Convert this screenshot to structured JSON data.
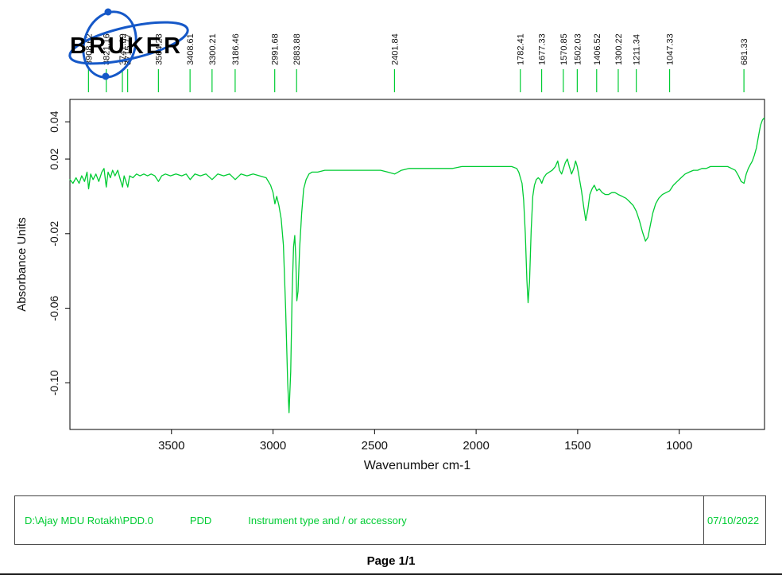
{
  "logo": {
    "text": "BRUKER",
    "text_color": "#000000",
    "swirl_color": "#1558c8"
  },
  "chart_data": {
    "type": "line",
    "title": "",
    "xlabel": "Wavenumber cm-1",
    "ylabel": "Absorbance Units",
    "x_ticks": [
      3500,
      3000,
      2500,
      2000,
      1500,
      1000
    ],
    "y_ticks": [
      "0.04",
      "0.02",
      "-0.02",
      "-0.06",
      "-0.10"
    ],
    "xlim": [
      4000,
      580
    ],
    "ylim": [
      -0.125,
      0.052
    ],
    "grid": false,
    "legend": "none",
    "line_color": "#00cc33",
    "peak_labels": [
      "3908.62",
      "3821.16",
      "3741.69",
      "3715.77",
      "3564.23",
      "3408.61",
      "3300.21",
      "3186.46",
      "2991.68",
      "2883.88",
      "2401.84",
      "1782.41",
      "1677.33",
      "1570.85",
      "1502.03",
      "1406.52",
      "1300.22",
      "1211.34",
      "1047.33",
      "681.33"
    ],
    "series": [
      {
        "name": "FTIR absorbance spectrum",
        "points": [
          [
            4000,
            0.009
          ],
          [
            3985,
            0.007
          ],
          [
            3970,
            0.01
          ],
          [
            3955,
            0.007
          ],
          [
            3942,
            0.011
          ],
          [
            3928,
            0.008
          ],
          [
            3916,
            0.013
          ],
          [
            3908,
            0.004
          ],
          [
            3898,
            0.012
          ],
          [
            3886,
            0.009
          ],
          [
            3872,
            0.012
          ],
          [
            3858,
            0.008
          ],
          [
            3843,
            0.013
          ],
          [
            3832,
            0.015
          ],
          [
            3821,
            0.005
          ],
          [
            3812,
            0.013
          ],
          [
            3801,
            0.01
          ],
          [
            3790,
            0.014
          ],
          [
            3778,
            0.011
          ],
          [
            3765,
            0.014
          ],
          [
            3752,
            0.009
          ],
          [
            3741,
            0.005
          ],
          [
            3733,
            0.011
          ],
          [
            3724,
            0.008
          ],
          [
            3715,
            0.005
          ],
          [
            3706,
            0.011
          ],
          [
            3690,
            0.01
          ],
          [
            3672,
            0.012
          ],
          [
            3655,
            0.011
          ],
          [
            3636,
            0.012
          ],
          [
            3618,
            0.011
          ],
          [
            3600,
            0.012
          ],
          [
            3582,
            0.011
          ],
          [
            3564,
            0.008
          ],
          [
            3548,
            0.011
          ],
          [
            3530,
            0.012
          ],
          [
            3505,
            0.011
          ],
          [
            3478,
            0.012
          ],
          [
            3450,
            0.011
          ],
          [
            3428,
            0.012
          ],
          [
            3408,
            0.009
          ],
          [
            3385,
            0.012
          ],
          [
            3358,
            0.011
          ],
          [
            3330,
            0.012
          ],
          [
            3300,
            0.009
          ],
          [
            3272,
            0.012
          ],
          [
            3243,
            0.011
          ],
          [
            3214,
            0.012
          ],
          [
            3186,
            0.009
          ],
          [
            3158,
            0.012
          ],
          [
            3128,
            0.011
          ],
          [
            3098,
            0.012
          ],
          [
            3066,
            0.011
          ],
          [
            3034,
            0.01
          ],
          [
            3012,
            0.006
          ],
          [
            3000,
            0.002
          ],
          [
            2991,
            -0.004
          ],
          [
            2982,
            0.0
          ],
          [
            2971,
            -0.005
          ],
          [
            2960,
            -0.012
          ],
          [
            2949,
            -0.026
          ],
          [
            2938,
            -0.06
          ],
          [
            2928,
            -0.1
          ],
          [
            2921,
            -0.116
          ],
          [
            2913,
            -0.094
          ],
          [
            2906,
            -0.052
          ],
          [
            2899,
            -0.027
          ],
          [
            2893,
            -0.021
          ],
          [
            2888,
            -0.033
          ],
          [
            2883,
            -0.056
          ],
          [
            2877,
            -0.051
          ],
          [
            2869,
            -0.028
          ],
          [
            2859,
            -0.009
          ],
          [
            2849,
            0.004
          ],
          [
            2837,
            0.009
          ],
          [
            2823,
            0.012
          ],
          [
            2808,
            0.013
          ],
          [
            2780,
            0.013
          ],
          [
            2745,
            0.014
          ],
          [
            2710,
            0.014
          ],
          [
            2670,
            0.014
          ],
          [
            2630,
            0.014
          ],
          [
            2590,
            0.014
          ],
          [
            2550,
            0.014
          ],
          [
            2510,
            0.014
          ],
          [
            2470,
            0.014
          ],
          [
            2435,
            0.013
          ],
          [
            2401,
            0.012
          ],
          [
            2368,
            0.014
          ],
          [
            2330,
            0.015
          ],
          [
            2290,
            0.015
          ],
          [
            2248,
            0.015
          ],
          [
            2205,
            0.015
          ],
          [
            2160,
            0.015
          ],
          [
            2115,
            0.015
          ],
          [
            2070,
            0.016
          ],
          [
            2025,
            0.016
          ],
          [
            1980,
            0.016
          ],
          [
            1935,
            0.016
          ],
          [
            1895,
            0.016
          ],
          [
            1858,
            0.016
          ],
          [
            1825,
            0.016
          ],
          [
            1800,
            0.015
          ],
          [
            1790,
            0.013
          ],
          [
            1782,
            0.01
          ],
          [
            1774,
            0.007
          ],
          [
            1766,
            -0.002
          ],
          [
            1758,
            -0.02
          ],
          [
            1750,
            -0.045
          ],
          [
            1744,
            -0.057
          ],
          [
            1737,
            -0.046
          ],
          [
            1729,
            -0.018
          ],
          [
            1721,
            0.0
          ],
          [
            1713,
            0.006
          ],
          [
            1704,
            0.009
          ],
          [
            1694,
            0.01
          ],
          [
            1685,
            0.009
          ],
          [
            1677,
            0.007
          ],
          [
            1667,
            0.01
          ],
          [
            1654,
            0.012
          ],
          [
            1640,
            0.013
          ],
          [
            1625,
            0.014
          ],
          [
            1610,
            0.016
          ],
          [
            1598,
            0.019
          ],
          [
            1589,
            0.014
          ],
          [
            1579,
            0.012
          ],
          [
            1570,
            0.015
          ],
          [
            1561,
            0.018
          ],
          [
            1551,
            0.02
          ],
          [
            1541,
            0.016
          ],
          [
            1530,
            0.012
          ],
          [
            1519,
            0.015
          ],
          [
            1510,
            0.019
          ],
          [
            1502,
            0.016
          ],
          [
            1492,
            0.01
          ],
          [
            1481,
            0.003
          ],
          [
            1470,
            -0.006
          ],
          [
            1460,
            -0.013
          ],
          [
            1450,
            -0.007
          ],
          [
            1440,
            0.001
          ],
          [
            1429,
            0.004
          ],
          [
            1418,
            0.006
          ],
          [
            1406,
            0.003
          ],
          [
            1394,
            0.004
          ],
          [
            1379,
            0.002
          ],
          [
            1364,
            0.001
          ],
          [
            1348,
            0.001
          ],
          [
            1332,
            0.002
          ],
          [
            1316,
            0.002
          ],
          [
            1300,
            0.001
          ],
          [
            1281,
            0.0
          ],
          [
            1262,
            -0.001
          ],
          [
            1243,
            -0.003
          ],
          [
            1226,
            -0.005
          ],
          [
            1211,
            -0.008
          ],
          [
            1196,
            -0.013
          ],
          [
            1181,
            -0.019
          ],
          [
            1166,
            -0.024
          ],
          [
            1154,
            -0.022
          ],
          [
            1143,
            -0.016
          ],
          [
            1130,
            -0.009
          ],
          [
            1116,
            -0.004
          ],
          [
            1101,
            -0.001
          ],
          [
            1083,
            0.001
          ],
          [
            1065,
            0.002
          ],
          [
            1047,
            0.003
          ],
          [
            1029,
            0.006
          ],
          [
            1010,
            0.008
          ],
          [
            991,
            0.01
          ],
          [
            971,
            0.012
          ],
          [
            951,
            0.013
          ],
          [
            930,
            0.014
          ],
          [
            909,
            0.014
          ],
          [
            888,
            0.015
          ],
          [
            867,
            0.015
          ],
          [
            846,
            0.016
          ],
          [
            825,
            0.016
          ],
          [
            804,
            0.016
          ],
          [
            783,
            0.016
          ],
          [
            762,
            0.016
          ],
          [
            742,
            0.015
          ],
          [
            724,
            0.014
          ],
          [
            708,
            0.011
          ],
          [
            695,
            0.008
          ],
          [
            681,
            0.007
          ],
          [
            670,
            0.012
          ],
          [
            660,
            0.015
          ],
          [
            650,
            0.017
          ],
          [
            640,
            0.019
          ],
          [
            630,
            0.022
          ],
          [
            620,
            0.026
          ],
          [
            610,
            0.032
          ],
          [
            600,
            0.038
          ],
          [
            590,
            0.041
          ],
          [
            582,
            0.042
          ]
        ]
      }
    ]
  },
  "footer": {
    "file_path": "D:\\Ajay MDU Rotakh\\PDD.0",
    "sample_name": "PDD",
    "description": "Instrument type and / or accessory",
    "date": "07/10/2022",
    "text_color": "#00cc33",
    "page_label": "Page 1/1"
  }
}
